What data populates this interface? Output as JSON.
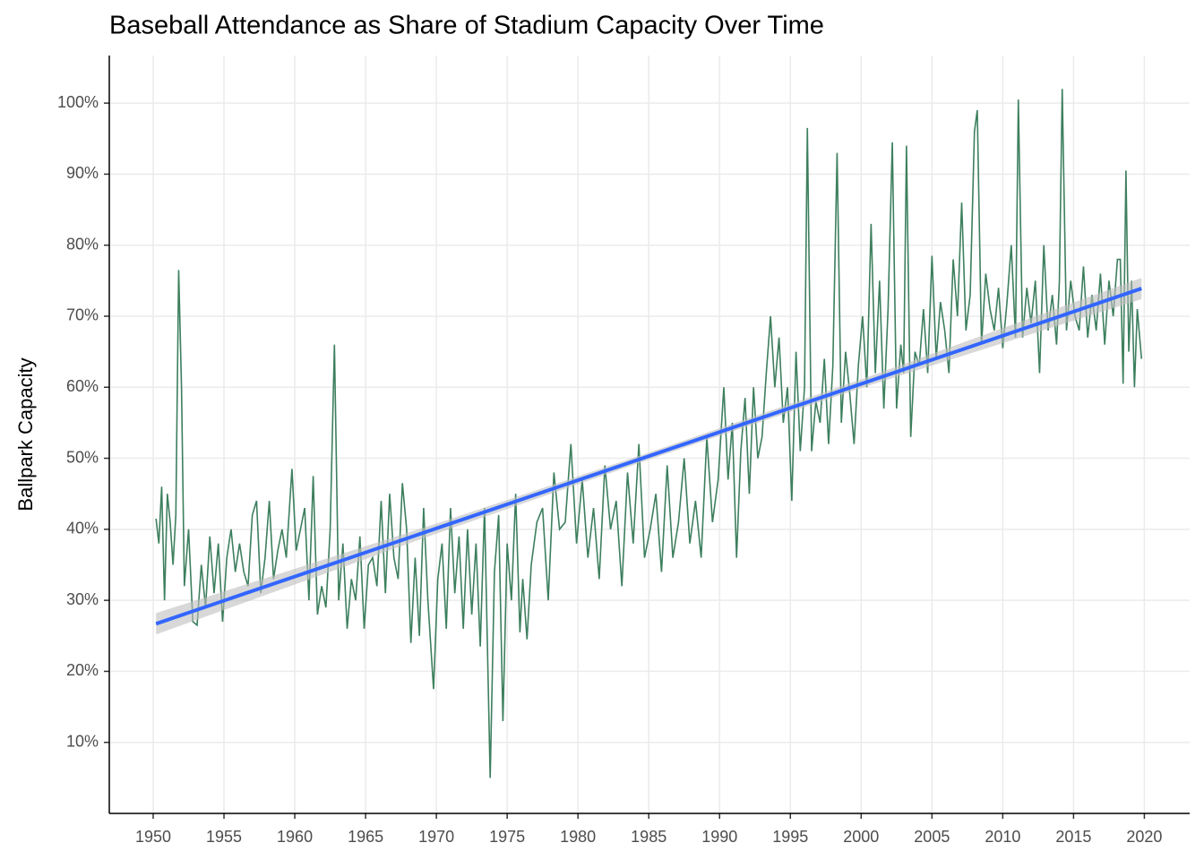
{
  "chart_data": {
    "type": "line",
    "title": "Baseball Attendance as Share of Stadium Capacity Over Time",
    "ylabel": "Ballpark Capacity",
    "xlim": [
      1946.9,
      2023.2
    ],
    "ylim": [
      0,
      106.7
    ],
    "xticks": [
      1950,
      1955,
      1960,
      1965,
      1970,
      1975,
      1980,
      1985,
      1990,
      1995,
      2000,
      2005,
      2010,
      2015,
      2020
    ],
    "yticks": [
      {
        "value": 10,
        "label": "10%"
      },
      {
        "value": 20,
        "label": "20%"
      },
      {
        "value": 30,
        "label": "30%"
      },
      {
        "value": 40,
        "label": "40%"
      },
      {
        "value": 50,
        "label": "50%"
      },
      {
        "value": 60,
        "label": "60%"
      },
      {
        "value": 70,
        "label": "70%"
      },
      {
        "value": 80,
        "label": "80%"
      },
      {
        "value": 90,
        "label": "90%"
      },
      {
        "value": 100,
        "label": "100%"
      }
    ],
    "grid": true,
    "series": [
      {
        "color": "#3d7f5e",
        "x": [
          1950.2,
          1950.4,
          1950.6,
          1950.8,
          1951.0,
          1951.2,
          1951.4,
          1951.6,
          1951.8,
          1952.0,
          1952.2,
          1952.5,
          1952.8,
          1953.1,
          1953.4,
          1953.7,
          1954.0,
          1954.3,
          1954.6,
          1954.9,
          1955.2,
          1955.5,
          1955.8,
          1956.1,
          1956.4,
          1956.7,
          1957.0,
          1957.3,
          1957.6,
          1957.9,
          1958.2,
          1958.5,
          1958.8,
          1959.1,
          1959.4,
          1959.8,
          1960.1,
          1960.4,
          1960.7,
          1961.0,
          1961.3,
          1961.6,
          1961.9,
          1962.2,
          1962.5,
          1962.8,
          1963.1,
          1963.4,
          1963.7,
          1964.0,
          1964.3,
          1964.6,
          1964.9,
          1965.2,
          1965.5,
          1965.8,
          1966.1,
          1966.4,
          1966.7,
          1967.0,
          1967.3,
          1967.6,
          1967.9,
          1968.2,
          1968.5,
          1968.8,
          1969.1,
          1969.4,
          1969.8,
          1970.1,
          1970.4,
          1970.7,
          1971.0,
          1971.3,
          1971.6,
          1971.9,
          1972.2,
          1972.5,
          1972.8,
          1973.1,
          1973.4,
          1973.8,
          1974.1,
          1974.4,
          1974.7,
          1975.0,
          1975.3,
          1975.6,
          1975.9,
          1976.1,
          1976.4,
          1976.7,
          1977.1,
          1977.5,
          1977.9,
          1978.3,
          1978.7,
          1979.1,
          1979.5,
          1979.9,
          1980.3,
          1980.7,
          1981.1,
          1981.5,
          1981.9,
          1982.3,
          1982.7,
          1983.1,
          1983.5,
          1983.9,
          1984.3,
          1984.7,
          1985.1,
          1985.5,
          1985.9,
          1986.3,
          1986.7,
          1987.1,
          1987.5,
          1987.9,
          1988.3,
          1988.7,
          1989.1,
          1989.5,
          1989.9,
          1990.3,
          1990.6,
          1990.9,
          1991.2,
          1991.5,
          1991.8,
          1992.1,
          1992.4,
          1992.7,
          1993.0,
          1993.3,
          1993.6,
          1993.9,
          1994.2,
          1994.5,
          1994.8,
          1995.1,
          1995.4,
          1995.7,
          1996.0,
          1996.2,
          1996.5,
          1996.8,
          1997.1,
          1997.4,
          1997.7,
          1998.0,
          1998.3,
          1998.6,
          1998.9,
          1999.2,
          1999.5,
          1999.8,
          2000.1,
          2000.4,
          2000.7,
          2001.0,
          2001.3,
          2001.6,
          2001.9,
          2002.2,
          2002.5,
          2002.8,
          2003.0,
          2003.2,
          2003.5,
          2003.8,
          2004.1,
          2004.4,
          2004.7,
          2005.0,
          2005.3,
          2005.6,
          2005.9,
          2006.2,
          2006.5,
          2006.8,
          2007.1,
          2007.4,
          2007.7,
          2008.0,
          2008.2,
          2008.5,
          2008.8,
          2009.1,
          2009.4,
          2009.7,
          2010.0,
          2010.3,
          2010.6,
          2010.9,
          2011.1,
          2011.4,
          2011.7,
          2012.0,
          2012.3,
          2012.6,
          2012.9,
          2013.2,
          2013.5,
          2013.8,
          2014.0,
          2014.2,
          2014.5,
          2014.8,
          2015.1,
          2015.4,
          2015.7,
          2016.0,
          2016.3,
          2016.6,
          2016.9,
          2017.2,
          2017.5,
          2017.8,
          2018.1,
          2018.3,
          2018.5,
          2018.7,
          2018.9,
          2019.1,
          2019.3,
          2019.5,
          2019.8
        ],
        "values": [
          41.5,
          38,
          46,
          30,
          45,
          41,
          35,
          42,
          76.5,
          60,
          32,
          40,
          27,
          26.5,
          35,
          29,
          39,
          31,
          38,
          27,
          36,
          40,
          34,
          38,
          34,
          32,
          42,
          44,
          31,
          36,
          44,
          33,
          37,
          40,
          36,
          48.5,
          37,
          40,
          43,
          30,
          47.5,
          28,
          32,
          29,
          40,
          66,
          30,
          38,
          26,
          33,
          30,
          39,
          26,
          35,
          36,
          32,
          44,
          31,
          45,
          36,
          33,
          46.5,
          40,
          24,
          36,
          25,
          43,
          30,
          17.5,
          33,
          38,
          26,
          43,
          31,
          39,
          26,
          40,
          28,
          38,
          23.5,
          43,
          5,
          34,
          42,
          13,
          38,
          30,
          45,
          25.5,
          33,
          24.5,
          35,
          41,
          43,
          30,
          48,
          40,
          41,
          52,
          38,
          47,
          36,
          43,
          33,
          49,
          40,
          44,
          32,
          48,
          38,
          52,
          36,
          40,
          45,
          34,
          49,
          36,
          41,
          50,
          38,
          44,
          36,
          53,
          41,
          47,
          60,
          47,
          55,
          36,
          51,
          58.5,
          45,
          60,
          50,
          53,
          62,
          70,
          60,
          67,
          55,
          60,
          44,
          65,
          51,
          60,
          96.5,
          51,
          58,
          55,
          64,
          52,
          63,
          93,
          55,
          65,
          59,
          52,
          63,
          70,
          60,
          83,
          62,
          75,
          57,
          71,
          94.5,
          57,
          66,
          62,
          94,
          53,
          65,
          63,
          71,
          62,
          78.5,
          64,
          72,
          68,
          62,
          78,
          70,
          86,
          68,
          73,
          96,
          99,
          66,
          76,
          71,
          68,
          74,
          65.5,
          72,
          80,
          67,
          100.5,
          67,
          74,
          69,
          75,
          62,
          80,
          68,
          73,
          66,
          75,
          102,
          68,
          75,
          70,
          68,
          77,
          67,
          73,
          68,
          76,
          66,
          75,
          70,
          78,
          78,
          60.5,
          90.5,
          65,
          75,
          60,
          71,
          64
        ]
      }
    ],
    "trend": {
      "color": "#3366ff",
      "x": [
        1950.2,
        2019.8
      ],
      "values": [
        26.7,
        73.9
      ]
    },
    "band": {
      "color": "#bebebe",
      "x": [
        1950.2,
        1970,
        1985,
        2000,
        2019.8
      ],
      "lower": [
        25.2,
        39.4,
        49.8,
        59.9,
        72.4
      ],
      "upper": [
        28.2,
        40.8,
        50.8,
        61.1,
        75.4
      ]
    }
  }
}
